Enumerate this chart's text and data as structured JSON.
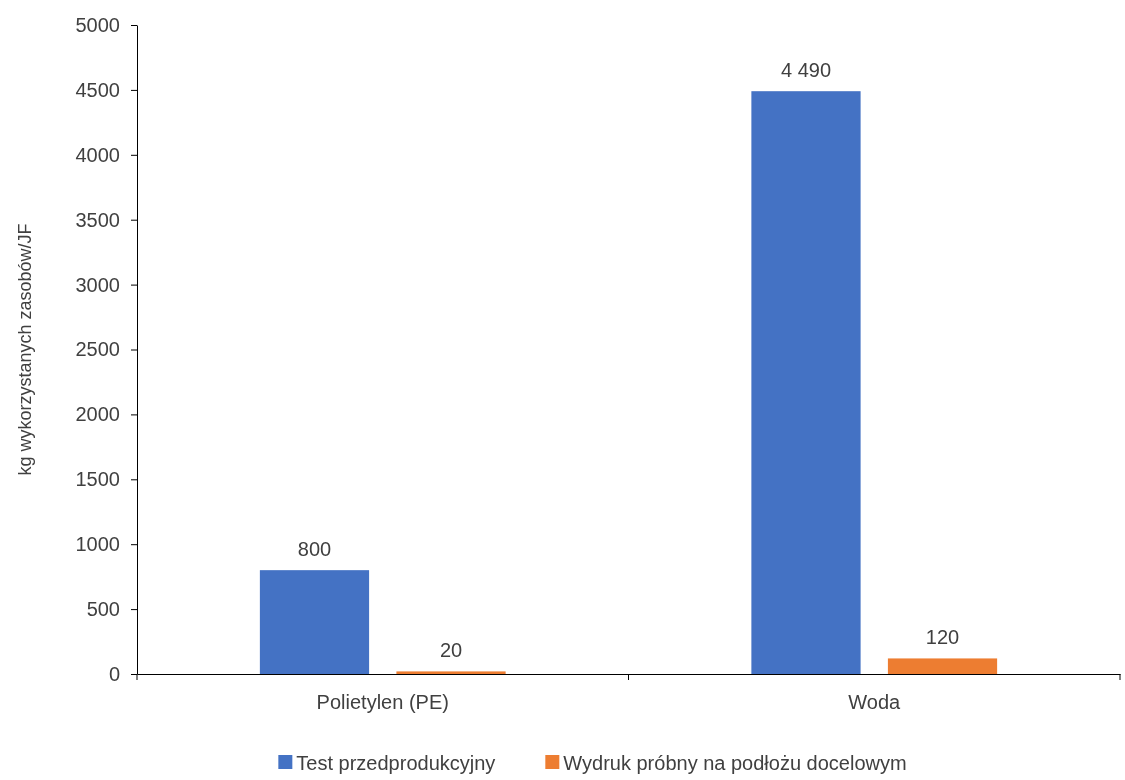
{
  "chart_data": {
    "type": "bar",
    "ylabel": "kg wykorzystanych zasobów/JF",
    "categories": [
      "Polietylen (PE)",
      "Woda"
    ],
    "series": [
      {
        "name": "Test przedprodukcyjny",
        "color": "#4472c4",
        "values": [
          800,
          4490
        ],
        "value_labels": [
          "800",
          "4 490"
        ]
      },
      {
        "name": "Wydruk próbny na podłożu docelowym",
        "color": "#ed7d31",
        "values": [
          20,
          120
        ],
        "value_labels": [
          "20",
          "120"
        ]
      }
    ],
    "ylim": [
      0,
      5000
    ],
    "yticks": [
      0,
      500,
      1000,
      1500,
      2000,
      2500,
      3000,
      3500,
      4000,
      4500,
      5000
    ],
    "grid": false,
    "legend": "bottom"
  }
}
